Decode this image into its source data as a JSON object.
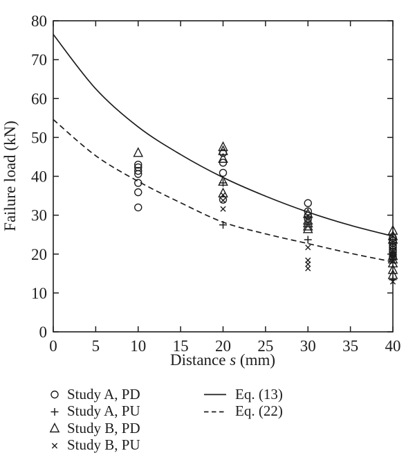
{
  "figure": {
    "bg": "#ffffff",
    "ink": "#1c1c1c"
  },
  "chart_data": {
    "type": "scatter",
    "title": "",
    "xlabel": "Distance s (mm)",
    "xlabel_parts": {
      "pre": "Distance ",
      "var": "s",
      "post": " (mm)"
    },
    "ylabel": "Failure load (kN)",
    "xlim": [
      0,
      40
    ],
    "ylim": [
      0,
      80
    ],
    "xticks": [
      0,
      5,
      10,
      15,
      20,
      25,
      30,
      35,
      40
    ],
    "yticks": [
      0,
      10,
      20,
      30,
      40,
      50,
      60,
      70,
      80
    ],
    "grid": false,
    "legend_position": "below",
    "series": [
      {
        "name": "Study A, PD",
        "marker": "circle",
        "points": [
          [
            10,
            43
          ],
          [
            10,
            42.3
          ],
          [
            10,
            41.4
          ],
          [
            10,
            40.6
          ],
          [
            10,
            38.3
          ],
          [
            10,
            35.9
          ],
          [
            10,
            32
          ],
          [
            20,
            46
          ],
          [
            20,
            43.5
          ],
          [
            20,
            40.9
          ],
          [
            20,
            34
          ],
          [
            30,
            33.1
          ],
          [
            30,
            31
          ],
          [
            30,
            29.9
          ],
          [
            30,
            29
          ],
          [
            40,
            24.2
          ],
          [
            40,
            23.5
          ],
          [
            40,
            22.9
          ],
          [
            40,
            22.3
          ],
          [
            40,
            21.7
          ],
          [
            40,
            21.1
          ],
          [
            40,
            20.5
          ],
          [
            40,
            19.9
          ],
          [
            40,
            19.3
          ]
        ]
      },
      {
        "name": "Study A, PU",
        "marker": "plus",
        "points": [
          [
            20,
            38.3
          ],
          [
            20,
            27.5
          ],
          [
            30,
            23.7
          ],
          [
            40,
            22.5
          ],
          [
            40,
            21.4
          ],
          [
            40,
            20.3
          ],
          [
            40,
            13.4
          ]
        ]
      },
      {
        "name": "Study B, PD",
        "marker": "triangle",
        "points": [
          [
            10,
            46
          ],
          [
            20,
            47.5
          ],
          [
            20,
            46.5
          ],
          [
            20,
            44.5
          ],
          [
            20,
            38.6
          ],
          [
            20,
            35.6
          ],
          [
            30,
            30.3
          ],
          [
            30,
            28.6
          ],
          [
            30,
            27.9
          ],
          [
            30,
            27.1
          ],
          [
            30,
            26.4
          ],
          [
            40,
            26
          ],
          [
            40,
            24.6
          ],
          [
            40,
            23.7
          ],
          [
            40,
            19.5
          ],
          [
            40,
            18.6
          ],
          [
            40,
            17.6
          ],
          [
            40,
            15.9
          ],
          [
            40,
            14.6
          ]
        ]
      },
      {
        "name": "Study B, PU",
        "marker": "x",
        "points": [
          [
            20,
            35.2
          ],
          [
            20,
            33.8
          ],
          [
            20,
            31.6
          ],
          [
            30,
            21.7
          ],
          [
            30,
            18.4
          ],
          [
            30,
            17.4
          ],
          [
            30,
            16.3
          ],
          [
            40,
            21
          ],
          [
            40,
            20
          ],
          [
            40,
            19
          ],
          [
            40,
            18.1
          ],
          [
            40,
            12.9
          ]
        ]
      }
    ],
    "curves": [
      {
        "name": "Eq. (13)",
        "style": "solid",
        "points": [
          [
            0,
            76.5
          ],
          [
            5,
            62.5
          ],
          [
            10,
            52.7
          ],
          [
            15,
            45.6
          ],
          [
            20,
            39.7
          ],
          [
            25,
            34.9
          ],
          [
            30,
            30.8
          ],
          [
            35,
            27.4
          ],
          [
            40,
            24.6
          ]
        ]
      },
      {
        "name": "Eq. (22)",
        "style": "dashed",
        "points": [
          [
            0,
            54.6
          ],
          [
            5,
            45.3
          ],
          [
            10,
            38.7
          ],
          [
            15,
            33.2
          ],
          [
            20,
            28.2
          ],
          [
            25,
            25.2
          ],
          [
            30,
            22.7
          ],
          [
            35,
            20.2
          ],
          [
            40,
            18
          ]
        ]
      }
    ],
    "legend": {
      "items": [
        {
          "label": "Study A, PD",
          "marker": "circle"
        },
        {
          "label": "Study A, PU",
          "marker": "plus"
        },
        {
          "label": "Study B, PD",
          "marker": "triangle"
        },
        {
          "label": "Study B, PU",
          "marker": "x"
        }
      ],
      "lines": [
        {
          "label": "Eq. (13)",
          "style": "solid"
        },
        {
          "label": "Eq. (22)",
          "style": "dashed"
        }
      ]
    }
  }
}
